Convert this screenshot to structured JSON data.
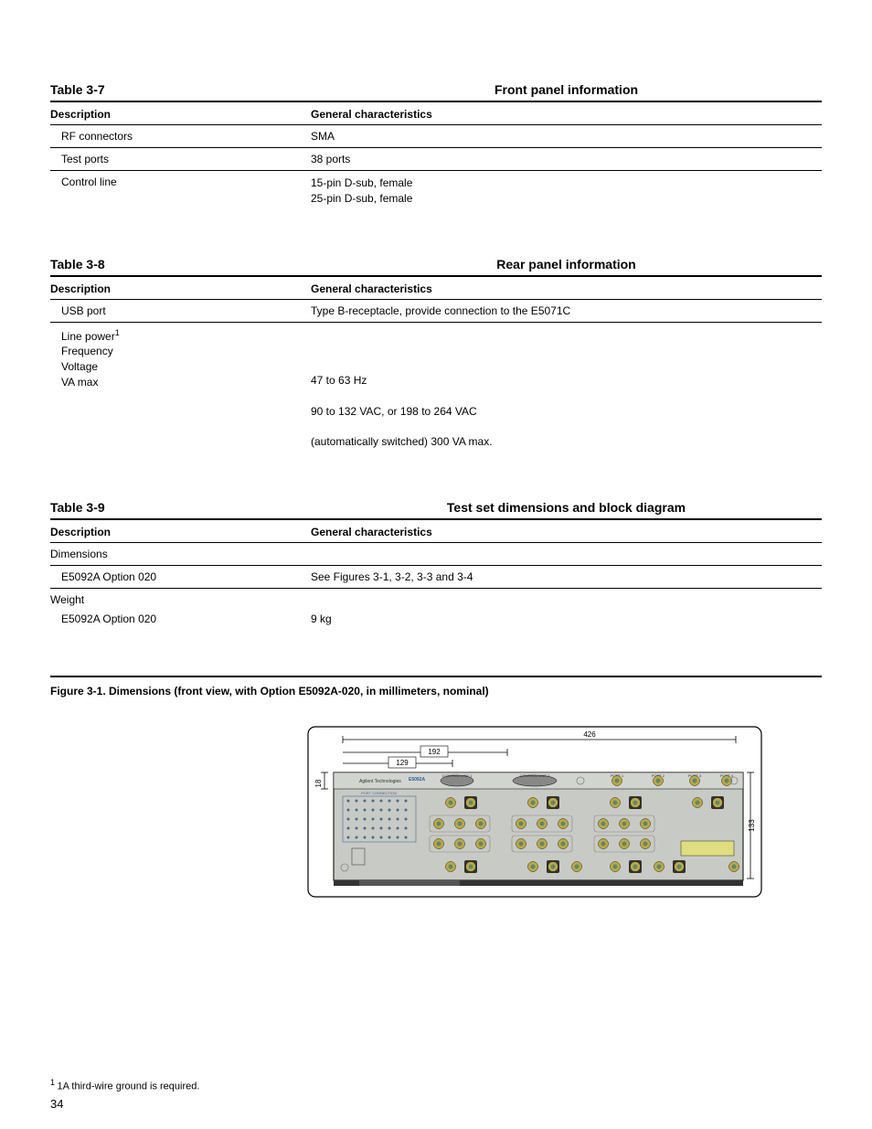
{
  "table37": {
    "num": "Table 3-7",
    "caption": "Front panel information",
    "h_desc": "Description",
    "h_char": "General characteristics",
    "rows": [
      {
        "desc": "RF connectors",
        "char": "SMA"
      },
      {
        "desc": "Test ports",
        "char": "38 ports"
      },
      {
        "desc": "Control line",
        "char": "15-pin D-sub, female\n25-pin D-sub, female"
      }
    ]
  },
  "table38": {
    "num": "Table 3-8",
    "caption": "Rear panel information",
    "h_desc": "Description",
    "h_char": "General characteristics",
    "row_usb": {
      "desc": "USB port",
      "char": "Type B-receptacle, provide connection to the E5071C"
    },
    "row_power": {
      "desc": "Line power",
      "lines": [
        {
          "d": "Frequency",
          "c": "47 to 63 Hz"
        },
        {
          "d": "Voltage",
          "c": "90 to 132 VAC, or 198 to 264 VAC"
        },
        {
          "d": "VA max",
          "c": "(automatically switched) 300 VA max."
        }
      ]
    }
  },
  "table39": {
    "num": "Table 3-9",
    "caption": "Test set dimensions and block diagram",
    "h_desc": "Description",
    "h_char": "General characteristics",
    "dim_label": "Dimensions",
    "dim_row": {
      "desc": "E5092A Option 020",
      "char": "See Figures 3-1, 3-2, 3-3 and 3-4"
    },
    "wt_label": "Weight",
    "wt_row": {
      "desc": "E5092A Option 020",
      "char": "9 kg"
    }
  },
  "figure_caption": "Figure 3-1. Dimensions (front view, with Option E5092A-020, in millimeters, nominal)",
  "device": {
    "w426": "426",
    "w192": "192",
    "w129": "129",
    "h18": "18",
    "h133": "133",
    "brand": "Agilent Technologies",
    "model": "E5092A",
    "ctl1": "CONTROL LINE 1",
    "ctl2": "CONTROL LINE 2",
    "port1": "PORT 1",
    "port2": "PORT 2",
    "port3": "PORT 3",
    "port4": "PORT 4",
    "colors": {
      "panel": "#c8cac5",
      "port_ring": "#bfa843",
      "port_center": "#5a8a6a",
      "port_dark_bg": "#333333",
      "outline": "#000000",
      "text": "#333333"
    }
  },
  "footnote": "1A third-wire ground is required.",
  "pagenum": "34"
}
